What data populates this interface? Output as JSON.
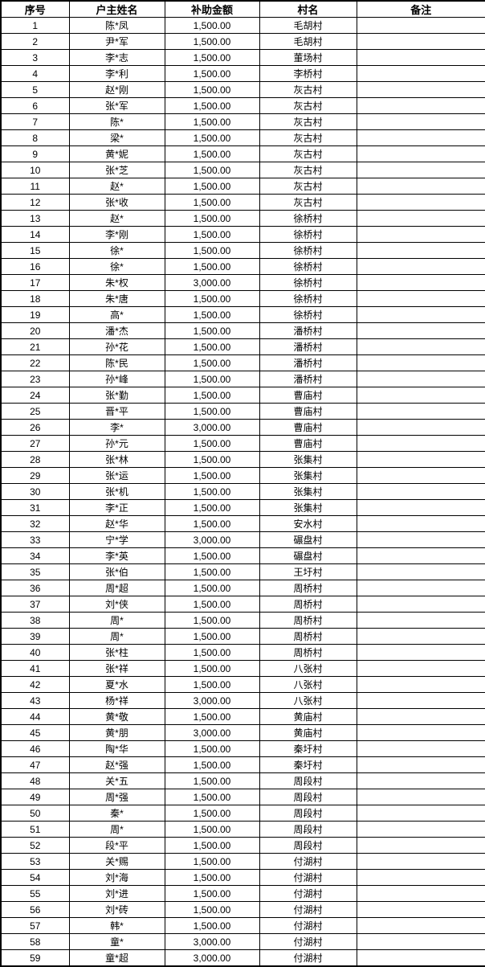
{
  "table": {
    "headers": [
      "序号",
      "户主姓名",
      "补助金额",
      "村名",
      "备注"
    ],
    "rows": [
      {
        "seq": "1",
        "name": "陈*凤",
        "amount": "1,500.00",
        "village": "毛胡村",
        "remark": ""
      },
      {
        "seq": "2",
        "name": "尹*军",
        "amount": "1,500.00",
        "village": "毛胡村",
        "remark": ""
      },
      {
        "seq": "3",
        "name": "李*志",
        "amount": "1,500.00",
        "village": "董场村",
        "remark": ""
      },
      {
        "seq": "4",
        "name": "李*利",
        "amount": "1,500.00",
        "village": "李桥村",
        "remark": ""
      },
      {
        "seq": "5",
        "name": "赵*刚",
        "amount": "1,500.00",
        "village": "灰古村",
        "remark": ""
      },
      {
        "seq": "6",
        "name": "张*军",
        "amount": "1,500.00",
        "village": "灰古村",
        "remark": ""
      },
      {
        "seq": "7",
        "name": "陈*",
        "amount": "1,500.00",
        "village": "灰古村",
        "remark": ""
      },
      {
        "seq": "8",
        "name": "梁*",
        "amount": "1,500.00",
        "village": "灰古村",
        "remark": ""
      },
      {
        "seq": "9",
        "name": "黄*妮",
        "amount": "1,500.00",
        "village": "灰古村",
        "remark": ""
      },
      {
        "seq": "10",
        "name": "张*芝",
        "amount": "1,500.00",
        "village": "灰古村",
        "remark": ""
      },
      {
        "seq": "11",
        "name": "赵*",
        "amount": "1,500.00",
        "village": "灰古村",
        "remark": ""
      },
      {
        "seq": "12",
        "name": "张*收",
        "amount": "1,500.00",
        "village": "灰古村",
        "remark": ""
      },
      {
        "seq": "13",
        "name": "赵*",
        "amount": "1,500.00",
        "village": "徐桥村",
        "remark": ""
      },
      {
        "seq": "14",
        "name": "李*刚",
        "amount": "1,500.00",
        "village": "徐桥村",
        "remark": ""
      },
      {
        "seq": "15",
        "name": "徐*",
        "amount": "1,500.00",
        "village": "徐桥村",
        "remark": ""
      },
      {
        "seq": "16",
        "name": "徐*",
        "amount": "1,500.00",
        "village": "徐桥村",
        "remark": ""
      },
      {
        "seq": "17",
        "name": "朱*权",
        "amount": "3,000.00",
        "village": "徐桥村",
        "remark": ""
      },
      {
        "seq": "18",
        "name": "朱*唐",
        "amount": "1,500.00",
        "village": "徐桥村",
        "remark": ""
      },
      {
        "seq": "19",
        "name": "高*",
        "amount": "1,500.00",
        "village": "徐桥村",
        "remark": ""
      },
      {
        "seq": "20",
        "name": "潘*杰",
        "amount": "1,500.00",
        "village": "潘桥村",
        "remark": ""
      },
      {
        "seq": "21",
        "name": "孙*花",
        "amount": "1,500.00",
        "village": "潘桥村",
        "remark": ""
      },
      {
        "seq": "22",
        "name": "陈*民",
        "amount": "1,500.00",
        "village": "潘桥村",
        "remark": ""
      },
      {
        "seq": "23",
        "name": "孙*峰",
        "amount": "1,500.00",
        "village": "潘桥村",
        "remark": ""
      },
      {
        "seq": "24",
        "name": "张*勤",
        "amount": "1,500.00",
        "village": "曹庙村",
        "remark": ""
      },
      {
        "seq": "25",
        "name": "晋*平",
        "amount": "1,500.00",
        "village": "曹庙村",
        "remark": ""
      },
      {
        "seq": "26",
        "name": "李*",
        "amount": "3,000.00",
        "village": "曹庙村",
        "remark": ""
      },
      {
        "seq": "27",
        "name": "孙*元",
        "amount": "1,500.00",
        "village": "曹庙村",
        "remark": ""
      },
      {
        "seq": "28",
        "name": "张*林",
        "amount": "1,500.00",
        "village": "张集村",
        "remark": ""
      },
      {
        "seq": "29",
        "name": "张*运",
        "amount": "1,500.00",
        "village": "张集村",
        "remark": ""
      },
      {
        "seq": "30",
        "name": "张*机",
        "amount": "1,500.00",
        "village": "张集村",
        "remark": ""
      },
      {
        "seq": "31",
        "name": "李*正",
        "amount": "1,500.00",
        "village": "张集村",
        "remark": ""
      },
      {
        "seq": "32",
        "name": "赵*华",
        "amount": "1,500.00",
        "village": "安水村",
        "remark": ""
      },
      {
        "seq": "33",
        "name": "宁*学",
        "amount": "3,000.00",
        "village": "碾盘村",
        "remark": ""
      },
      {
        "seq": "34",
        "name": "李*英",
        "amount": "1,500.00",
        "village": "碾盘村",
        "remark": ""
      },
      {
        "seq": "35",
        "name": "张*伯",
        "amount": "1,500.00",
        "village": "王圩村",
        "remark": ""
      },
      {
        "seq": "36",
        "name": "周*超",
        "amount": "1,500.00",
        "village": "周桥村",
        "remark": ""
      },
      {
        "seq": "37",
        "name": "刘*侠",
        "amount": "1,500.00",
        "village": "周桥村",
        "remark": ""
      },
      {
        "seq": "38",
        "name": "周*",
        "amount": "1,500.00",
        "village": "周桥村",
        "remark": ""
      },
      {
        "seq": "39",
        "name": "周*",
        "amount": "1,500.00",
        "village": "周桥村",
        "remark": ""
      },
      {
        "seq": "40",
        "name": "张*柱",
        "amount": "1,500.00",
        "village": "周桥村",
        "remark": ""
      },
      {
        "seq": "41",
        "name": "张*祥",
        "amount": "1,500.00",
        "village": "八张村",
        "remark": ""
      },
      {
        "seq": "42",
        "name": "夏*水",
        "amount": "1,500.00",
        "village": "八张村",
        "remark": ""
      },
      {
        "seq": "43",
        "name": "杨*祥",
        "amount": "3,000.00",
        "village": "八张村",
        "remark": ""
      },
      {
        "seq": "44",
        "name": "黄*敬",
        "amount": "1,500.00",
        "village": "黄庙村",
        "remark": ""
      },
      {
        "seq": "45",
        "name": "黄*朋",
        "amount": "3,000.00",
        "village": "黄庙村",
        "remark": ""
      },
      {
        "seq": "46",
        "name": "陶*华",
        "amount": "1,500.00",
        "village": "秦圩村",
        "remark": ""
      },
      {
        "seq": "47",
        "name": "赵*强",
        "amount": "1,500.00",
        "village": "秦圩村",
        "remark": ""
      },
      {
        "seq": "48",
        "name": "关*五",
        "amount": "1,500.00",
        "village": "周段村",
        "remark": ""
      },
      {
        "seq": "49",
        "name": "周*强",
        "amount": "1,500.00",
        "village": "周段村",
        "remark": ""
      },
      {
        "seq": "50",
        "name": "秦*",
        "amount": "1,500.00",
        "village": "周段村",
        "remark": ""
      },
      {
        "seq": "51",
        "name": "周*",
        "amount": "1,500.00",
        "village": "周段村",
        "remark": ""
      },
      {
        "seq": "52",
        "name": "段*平",
        "amount": "1,500.00",
        "village": "周段村",
        "remark": ""
      },
      {
        "seq": "53",
        "name": "关*赐",
        "amount": "1,500.00",
        "village": "付湖村",
        "remark": ""
      },
      {
        "seq": "54",
        "name": "刘*海",
        "amount": "1,500.00",
        "village": "付湖村",
        "remark": ""
      },
      {
        "seq": "55",
        "name": "刘*进",
        "amount": "1,500.00",
        "village": "付湖村",
        "remark": ""
      },
      {
        "seq": "56",
        "name": "刘*砖",
        "amount": "1,500.00",
        "village": "付湖村",
        "remark": ""
      },
      {
        "seq": "57",
        "name": "韩*",
        "amount": "1,500.00",
        "village": "付湖村",
        "remark": ""
      },
      {
        "seq": "58",
        "name": "童*",
        "amount": "3,000.00",
        "village": "付湖村",
        "remark": ""
      },
      {
        "seq": "59",
        "name": "童*超",
        "amount": "3,000.00",
        "village": "付湖村",
        "remark": ""
      }
    ],
    "colors": {
      "border": "#000000",
      "text": "#000000",
      "background": "#ffffff"
    }
  }
}
